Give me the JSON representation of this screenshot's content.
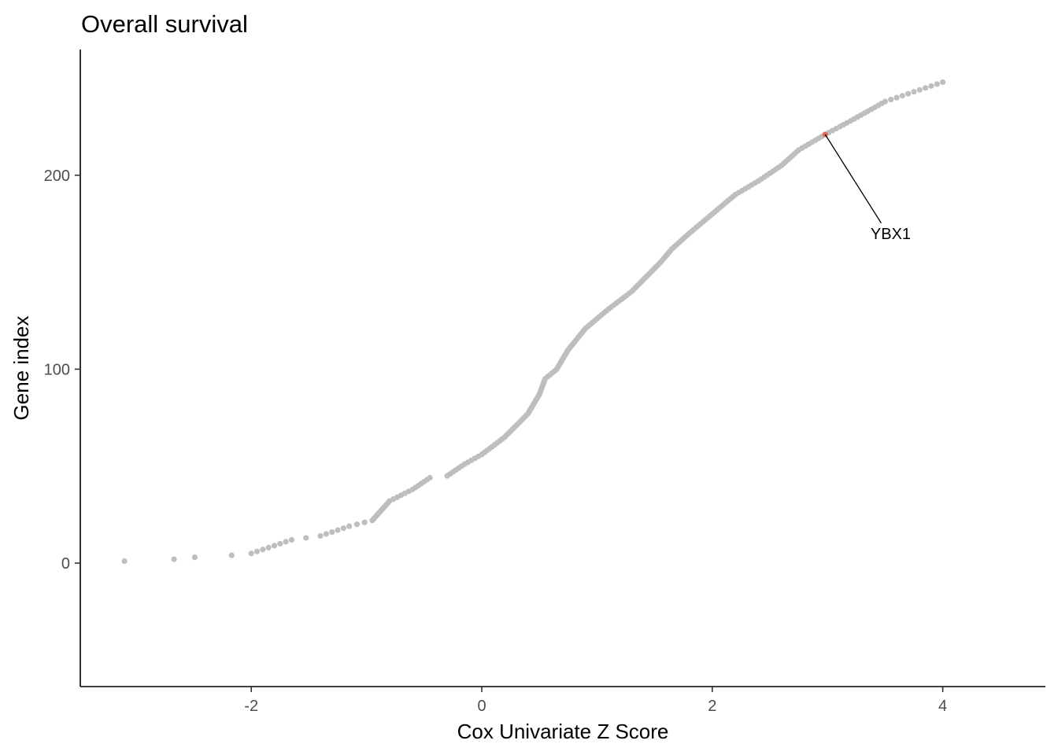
{
  "chart_data": {
    "type": "scatter",
    "title": "Overall survival",
    "xlabel": "Cox Univariate Z Score",
    "ylabel": "Gene index",
    "xlim": [
      -3.4,
      4.8
    ],
    "ylim": [
      -64,
      265
    ],
    "x_ticks": [
      -2,
      0,
      2,
      4
    ],
    "x_tick_labels": [
      "-2",
      "0",
      "2",
      "4"
    ],
    "y_ticks": [
      0,
      100,
      200
    ],
    "y_tick_labels": [
      "0",
      "100",
      "200"
    ],
    "grid": false,
    "legend": "none",
    "point_color": "#bebebe",
    "highlight_color": "#e26a5a",
    "curve": [
      [
        -3.1,
        1
      ],
      [
        -2.67,
        2
      ],
      [
        -2.49,
        3
      ],
      [
        -2.17,
        4
      ],
      [
        -2.0,
        5
      ],
      [
        -1.65,
        12
      ],
      [
        -1.4,
        14
      ],
      [
        -1.15,
        19
      ],
      [
        -0.95,
        22
      ],
      [
        -0.8,
        32
      ],
      [
        -0.6,
        38
      ],
      [
        -0.45,
        44
      ],
      [
        -0.3,
        45
      ],
      [
        -0.15,
        51
      ],
      [
        0.0,
        56
      ],
      [
        0.2,
        65
      ],
      [
        0.4,
        77
      ],
      [
        0.5,
        87
      ],
      [
        0.55,
        95
      ],
      [
        0.65,
        100
      ],
      [
        0.75,
        110
      ],
      [
        0.9,
        121
      ],
      [
        1.1,
        131
      ],
      [
        1.3,
        140
      ],
      [
        1.55,
        155
      ],
      [
        1.65,
        162
      ],
      [
        1.8,
        170
      ],
      [
        2.0,
        180
      ],
      [
        2.2,
        190
      ],
      [
        2.4,
        197
      ],
      [
        2.6,
        205
      ],
      [
        2.75,
        213
      ],
      [
        2.98,
        221
      ],
      [
        3.2,
        228
      ],
      [
        3.5,
        238
      ],
      [
        3.75,
        243
      ],
      [
        4.0,
        248
      ]
    ],
    "highlight": {
      "label": "YBX1",
      "x": 2.98,
      "y": 221,
      "label_x": 3.48,
      "label_y": 170
    }
  }
}
